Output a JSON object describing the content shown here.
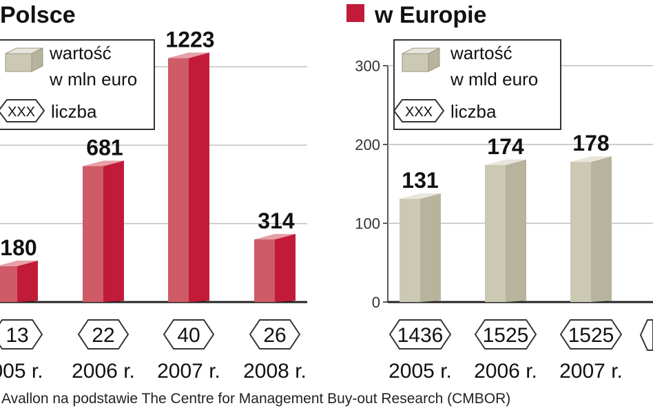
{
  "colors": {
    "poland_front": "#c21b3a",
    "poland_side": "#a0132d",
    "poland_top": "#e6a0a8",
    "poland_face": "#cf5b66",
    "europe_front": "#cbc8b4",
    "europe_side": "#b7b39c",
    "europe_top": "#e8e6dc",
    "axis": "#222222",
    "grid": "#bdbdbd",
    "text": "#111111"
  },
  "chart_data": [
    {
      "type": "bar",
      "panel": "poland",
      "title": "Polsce",
      "legend": {
        "value_label_line1": "wartość",
        "value_label_line2": "w mln euro",
        "count_box": "XXX",
        "count_label": "liczba"
      },
      "categories": [
        "005 r.",
        "2006 r.",
        "2007 r.",
        "2008 r."
      ],
      "values": [
        180,
        681,
        1223,
        314
      ],
      "value_labels": [
        "180",
        "681",
        "1223",
        "314"
      ],
      "counts": [
        "13",
        "22",
        "40",
        "26"
      ],
      "ylim": [
        0,
        1500
      ],
      "grid": true,
      "ytick_labels_shown": false
    },
    {
      "type": "bar",
      "panel": "europe",
      "title": "w Europie",
      "legend": {
        "value_label_line1": "wartość",
        "value_label_line2": "w mld euro",
        "count_box": "XXX",
        "count_label": "liczba"
      },
      "categories": [
        "2005 r.",
        "2006 r.",
        "2007 r."
      ],
      "values": [
        131,
        174,
        178
      ],
      "value_labels": [
        "131",
        "174",
        "178"
      ],
      "counts": [
        "1436",
        "1525",
        "1525"
      ],
      "yticks": [
        0,
        100,
        200,
        300
      ],
      "ytick_labels": [
        "0",
        "100",
        "200",
        "300"
      ],
      "ylim": [
        0,
        300
      ],
      "grid": true
    }
  ],
  "source": "Avallon na podstawie The Centre for Management Buy-out Research (CMBOR)"
}
